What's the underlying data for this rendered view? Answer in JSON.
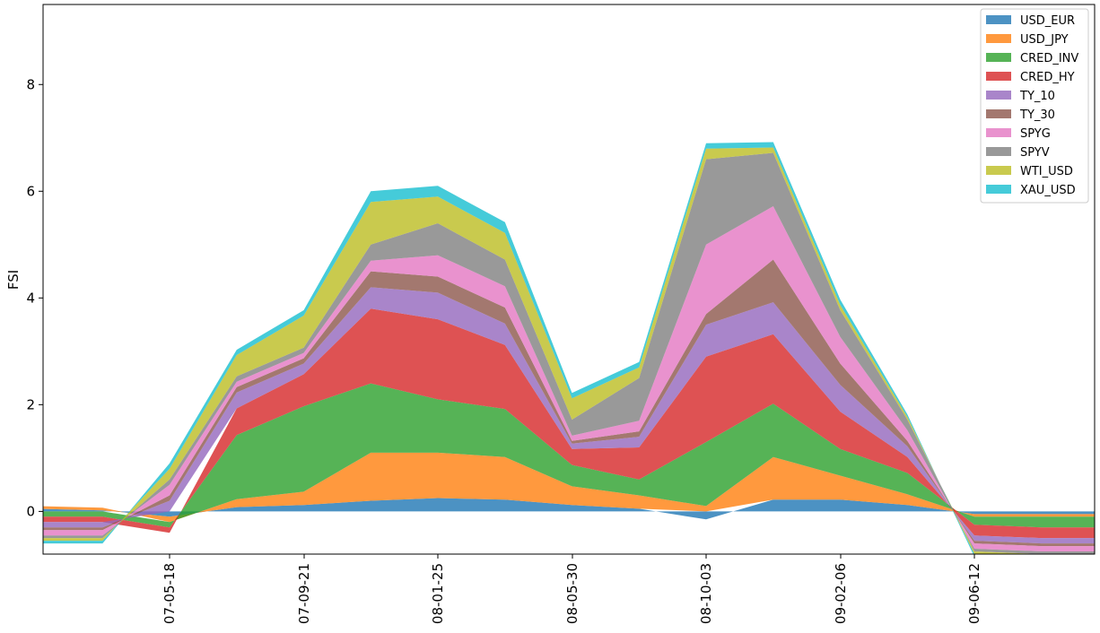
{
  "chart_data": {
    "type": "area",
    "title": "",
    "xlabel": "",
    "ylabel": "FSI",
    "x_tick_labels": [
      "07-05-18",
      "07-09-21",
      "08-01-25",
      "08-05-30",
      "08-10-03",
      "09-02-06",
      "09-06-12"
    ],
    "y_ticks": [
      0,
      2,
      4,
      6,
      8
    ],
    "ylim": [
      -0.8,
      9.5
    ],
    "grid": false,
    "legend_position": "top-right",
    "x": [
      "07-01-12",
      "07-03-15",
      "07-05-18",
      "07-07-20",
      "07-09-21",
      "07-11-23",
      "08-01-25",
      "08-03-28",
      "08-05-30",
      "08-08-01",
      "08-10-03",
      "08-12-05",
      "09-02-06",
      "09-04-10",
      "09-06-12",
      "09-08-14",
      "09-10-16"
    ],
    "series": [
      {
        "name": "USD_EUR",
        "color": "#1f77b4",
        "values": [
          0.05,
          0.02,
          -0.1,
          0.08,
          0.12,
          0.2,
          0.25,
          0.22,
          0.12,
          0.05,
          -0.15,
          0.22,
          0.22,
          0.12,
          -0.05,
          -0.05,
          -0.05
        ]
      },
      {
        "name": "USD_JPY",
        "color": "#ff7f0e",
        "values": [
          0.05,
          0.05,
          -0.1,
          0.15,
          0.25,
          0.9,
          0.85,
          0.8,
          0.35,
          0.25,
          0.1,
          0.8,
          0.45,
          0.2,
          -0.05,
          -0.05,
          -0.05
        ]
      },
      {
        "name": "CRED_INV",
        "color": "#2ca02c",
        "values": [
          -0.1,
          -0.1,
          -0.1,
          1.2,
          1.6,
          1.3,
          1.0,
          0.9,
          0.4,
          0.3,
          1.2,
          1.0,
          0.5,
          0.4,
          -0.15,
          -0.2,
          -0.2
        ]
      },
      {
        "name": "CRED_HY",
        "color": "#d62728",
        "values": [
          -0.1,
          -0.1,
          -0.1,
          0.5,
          0.6,
          1.4,
          1.5,
          1.2,
          0.3,
          0.6,
          1.6,
          1.3,
          0.7,
          0.3,
          -0.2,
          -0.2,
          -0.2
        ]
      },
      {
        "name": "TY_10",
        "color": "#9467bd",
        "values": [
          -0.1,
          -0.1,
          0.2,
          0.3,
          0.2,
          0.4,
          0.5,
          0.4,
          0.1,
          0.2,
          0.6,
          0.6,
          0.5,
          0.2,
          -0.1,
          -0.1,
          -0.1
        ]
      },
      {
        "name": "TY_30",
        "color": "#8c564b",
        "values": [
          -0.05,
          -0.05,
          0.1,
          0.1,
          0.1,
          0.3,
          0.3,
          0.3,
          0.05,
          0.1,
          0.2,
          0.8,
          0.4,
          0.1,
          -0.05,
          -0.05,
          -0.05
        ]
      },
      {
        "name": "SPYG",
        "color": "#e377c2",
        "values": [
          -0.1,
          -0.1,
          0.2,
          0.1,
          0.1,
          0.2,
          0.4,
          0.4,
          0.1,
          0.2,
          1.3,
          1.0,
          0.5,
          0.2,
          -0.1,
          -0.1,
          -0.1
        ]
      },
      {
        "name": "SPYV",
        "color": "#7f7f7f",
        "values": [
          -0.05,
          -0.05,
          0.1,
          0.1,
          0.1,
          0.3,
          0.6,
          0.5,
          0.3,
          0.8,
          1.6,
          1.0,
          0.5,
          0.2,
          -0.05,
          -0.05,
          -0.05
        ]
      },
      {
        "name": "WTI_USD",
        "color": "#bcbd22",
        "values": [
          -0.05,
          -0.05,
          0.2,
          0.4,
          0.6,
          0.8,
          0.5,
          0.5,
          0.4,
          0.2,
          0.2,
          0.1,
          0.1,
          0.05,
          -0.05,
          -0.05,
          -0.05
        ]
      },
      {
        "name": "XAU_USD",
        "color": "#17becf",
        "values": [
          -0.05,
          -0.05,
          0.1,
          0.1,
          0.1,
          0.2,
          0.2,
          0.2,
          0.1,
          0.1,
          0.1,
          0.1,
          0.1,
          0.05,
          -0.05,
          -0.05,
          -0.05
        ]
      }
    ]
  }
}
